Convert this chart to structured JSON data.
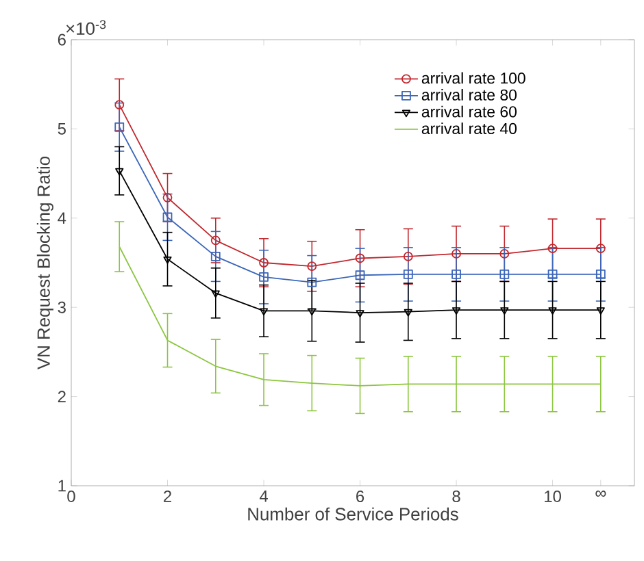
{
  "chart_data": {
    "type": "line",
    "xlabel": "Number of Service Periods",
    "ylabel": "VN Request Blocking Ratio",
    "annotations": [
      "×10$^{-3}$"
    ],
    "x": [
      1,
      2,
      3,
      4,
      5,
      6,
      7,
      8,
      9,
      10,
      11
    ],
    "xlim": [
      0,
      11.7
    ],
    "xticks": [
      0,
      2,
      4,
      6,
      8,
      10,
      {
        "value": 11,
        "label": "∞"
      }
    ],
    "ylim": [
      1,
      6
    ],
    "yticks": [
      1,
      2,
      3,
      4,
      5,
      6
    ],
    "grid": false,
    "legend": "top right",
    "series": [
      {
        "name": "arrival rate 100",
        "color": "#c1272d",
        "marker": "circle",
        "values": [
          5.27,
          4.23,
          3.75,
          3.5,
          3.46,
          3.55,
          3.57,
          3.6,
          3.6,
          3.66,
          3.66
        ],
        "errors": [
          0.29,
          0.27,
          0.25,
          0.27,
          0.28,
          0.32,
          0.31,
          0.31,
          0.31,
          0.33,
          0.33
        ]
      },
      {
        "name": "arrival rate 80",
        "color": "#3a66b8",
        "marker": "square",
        "values": [
          5.02,
          4.01,
          3.57,
          3.34,
          3.28,
          3.36,
          3.37,
          3.37,
          3.37,
          3.37,
          3.37
        ],
        "errors": [
          0.27,
          0.26,
          0.28,
          0.3,
          0.3,
          0.3,
          0.3,
          0.3,
          0.3,
          0.3,
          0.3
        ]
      },
      {
        "name": "arrival rate 60",
        "color": "#000000",
        "marker": "triangle",
        "values": [
          4.53,
          3.54,
          3.16,
          2.96,
          2.96,
          2.94,
          2.95,
          2.97,
          2.97,
          2.97,
          2.97
        ],
        "errors": [
          0.27,
          0.3,
          0.28,
          0.29,
          0.34,
          0.33,
          0.32,
          0.32,
          0.32,
          0.32,
          0.32
        ]
      },
      {
        "name": "arrival rate 40",
        "color": "#8cc63f",
        "marker": "none",
        "values": [
          3.68,
          2.63,
          2.34,
          2.19,
          2.15,
          2.12,
          2.14,
          2.14,
          2.14,
          2.14,
          2.14
        ],
        "errors": [
          0.28,
          0.3,
          0.3,
          0.29,
          0.31,
          0.31,
          0.31,
          0.31,
          0.31,
          0.31,
          0.31
        ]
      }
    ]
  }
}
